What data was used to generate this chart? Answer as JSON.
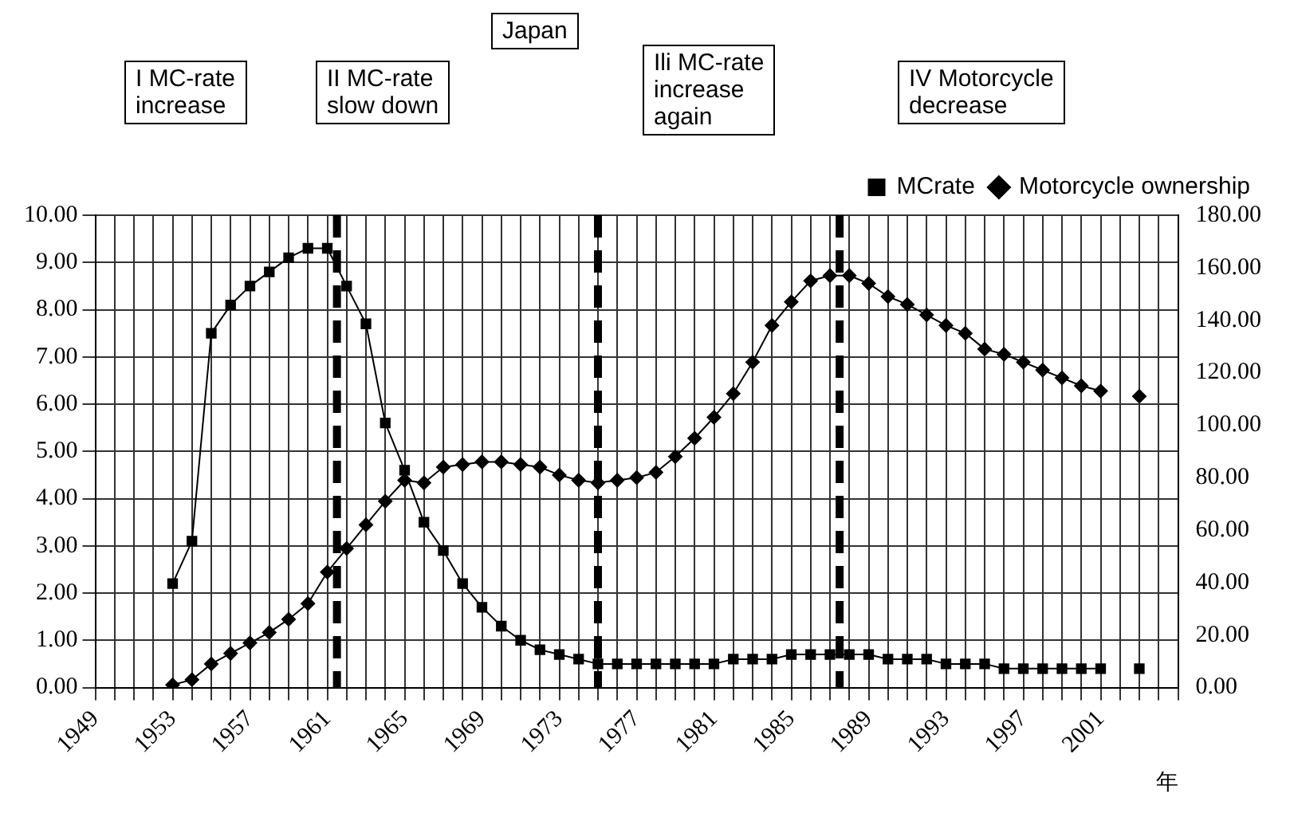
{
  "chart_data": {
    "type": "line",
    "xlabel": "年",
    "legend": "top right",
    "grid": true,
    "annotations": [
      "Japan",
      "I MC-rate\nincrease",
      "II MC-rate\nslow down",
      "Ili MC-rate\nincrease\nagain",
      "IV Motorcycle\ndecrease"
    ],
    "x": [
      1953,
      1954,
      1955,
      1956,
      1957,
      1958,
      1959,
      1960,
      1961,
      1962,
      1963,
      1964,
      1965,
      1966,
      1967,
      1968,
      1969,
      1970,
      1971,
      1972,
      1973,
      1974,
      1975,
      1976,
      1977,
      1978,
      1979,
      1980,
      1981,
      1982,
      1983,
      1984,
      1985,
      1986,
      1987,
      1988,
      1989,
      1990,
      1991,
      1992,
      1993,
      1994,
      1995,
      1996,
      1997,
      1998,
      1999,
      2000,
      2001,
      2002,
      2003
    ],
    "series": [
      {
        "name": "MCrate",
        "color": "#000000",
        "marker": "square",
        "values": [
          2.2,
          3.1,
          7.5,
          8.1,
          8.5,
          8.8,
          9.1,
          9.3,
          9.3,
          8.5,
          7.7,
          5.6,
          4.6,
          3.5,
          2.9,
          2.2,
          1.7,
          1.3,
          1.0,
          0.8,
          0.7,
          0.6,
          0.5,
          0.5,
          0.5,
          0.5,
          0.5,
          0.5,
          0.5,
          0.6,
          0.6,
          0.6,
          0.7,
          0.7,
          0.7,
          0.7,
          0.7,
          0.6,
          0.6,
          0.6,
          0.5,
          0.5,
          0.5,
          0.4,
          0.4,
          0.4,
          0.4,
          0.4,
          0.4,
          null,
          0.4
        ]
      },
      {
        "name": "Motorcycle ownership",
        "color": "#000000",
        "marker": "diamond",
        "axis": "y2",
        "values": [
          1,
          3,
          9,
          13,
          17,
          21,
          26,
          32,
          44,
          53,
          62,
          71,
          79,
          78,
          84,
          85,
          86,
          86,
          85,
          84,
          81,
          79,
          78,
          79,
          80,
          82,
          88,
          95,
          103,
          112,
          124,
          138,
          147,
          155,
          157,
          157,
          154,
          149,
          146,
          142,
          138,
          135,
          129,
          127,
          124,
          121,
          118,
          115,
          113,
          null,
          111
        ]
      }
    ],
    "xlim": [
      1949,
      2005
    ],
    "xticks": [
      1949,
      {
        "value": 1950,
        "label": null
      },
      {
        "value": 1951,
        "label": null
      },
      {
        "value": 1952,
        "label": null
      },
      1953,
      {
        "value": 1954,
        "label": null
      },
      {
        "value": 1955,
        "label": null
      },
      {
        "value": 1956,
        "label": null
      },
      1957,
      {
        "value": 1958,
        "label": null
      },
      {
        "value": 1959,
        "label": null
      },
      {
        "value": 1960,
        "label": null
      },
      1961,
      {
        "value": 1962,
        "label": null
      },
      {
        "value": 1963,
        "label": null
      },
      {
        "value": 1964,
        "label": null
      },
      1965,
      {
        "value": 1966,
        "label": null
      },
      {
        "value": 1967,
        "label": null
      },
      {
        "value": 1968,
        "label": null
      },
      1969,
      {
        "value": 1970,
        "label": null
      },
      {
        "value": 1971,
        "label": null
      },
      {
        "value": 1972,
        "label": null
      },
      1973,
      {
        "value": 1974,
        "label": null
      },
      {
        "value": 1975,
        "label": null
      },
      {
        "value": 1976,
        "label": null
      },
      1977,
      {
        "value": 1978,
        "label": null
      },
      {
        "value": 1979,
        "label": null
      },
      {
        "value": 1980,
        "label": null
      },
      1981,
      {
        "value": 1982,
        "label": null
      },
      {
        "value": 1983,
        "label": null
      },
      {
        "value": 1984,
        "label": null
      },
      1985,
      {
        "value": 1986,
        "label": null
      },
      {
        "value": 1987,
        "label": null
      },
      {
        "value": 1988,
        "label": null
      },
      1989,
      {
        "value": 1990,
        "label": null
      },
      {
        "value": 1991,
        "label": null
      },
      {
        "value": 1992,
        "label": null
      },
      1993,
      {
        "value": 1994,
        "label": null
      },
      {
        "value": 1995,
        "label": null
      },
      {
        "value": 1996,
        "label": null
      },
      1997,
      {
        "value": 1998,
        "label": null
      },
      {
        "value": 1999,
        "label": null
      },
      {
        "value": 2000,
        "label": null
      },
      2001,
      {
        "value": 2002,
        "label": null
      },
      {
        "value": 2003,
        "label": null
      },
      {
        "value": 2004,
        "label": null
      },
      {
        "value": 2005,
        "label": null
      }
    ],
    "ylim": [
      0,
      10
    ],
    "yticks": [
      {
        "value": 0,
        "label": "0.00"
      },
      {
        "value": 1,
        "label": "1.00"
      },
      {
        "value": 2,
        "label": "2.00"
      },
      {
        "value": 3,
        "label": "3.00"
      },
      {
        "value": 4,
        "label": "4.00"
      },
      {
        "value": 5,
        "label": "5.00"
      },
      {
        "value": 6,
        "label": "6.00"
      },
      {
        "value": 7,
        "label": "7.00"
      },
      {
        "value": 8,
        "label": "8.00"
      },
      {
        "value": 9,
        "label": "9.00"
      },
      {
        "value": 10,
        "label": "10.00"
      }
    ],
    "y2lim": [
      0,
      180
    ],
    "y2ticks": [
      {
        "value": 0,
        "label": "0.00"
      },
      {
        "value": 20,
        "label": "20.00"
      },
      {
        "value": 40,
        "label": "40.00"
      },
      {
        "value": 60,
        "label": "60.00"
      },
      {
        "value": 80,
        "label": "80.00"
      },
      {
        "value": 100,
        "label": "100.00"
      },
      {
        "value": 120,
        "label": "120.00"
      },
      {
        "value": 140,
        "label": "140.00"
      },
      {
        "value": 160,
        "label": "160.00"
      },
      {
        "value": 180,
        "label": "180.00"
      }
    ],
    "ref_lines": [
      {
        "axis": "x",
        "value": 1961.5,
        "color": "#000000",
        "line_style": "dashed"
      },
      {
        "axis": "x",
        "value": 1975,
        "color": "#000000",
        "line_style": "dashed"
      },
      {
        "axis": "x",
        "value": 1987.5,
        "color": "#000000",
        "line_style": "dashed"
      }
    ]
  }
}
